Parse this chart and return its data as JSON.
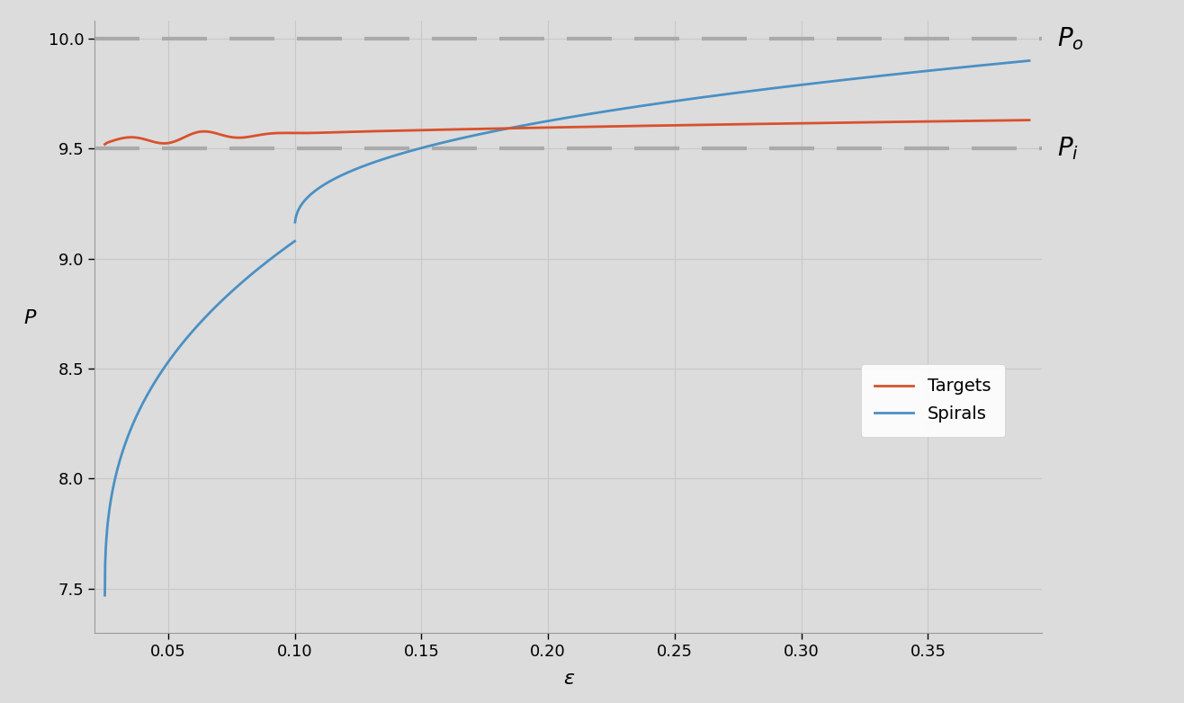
{
  "plot_background": "#dcdcdc",
  "figure_background": "#dcdcdc",
  "xlim": [
    0.021,
    0.395
  ],
  "ylim": [
    7.3,
    10.08
  ],
  "xlabel": "ε",
  "ylabel": "P",
  "xlabel_fontsize": 16,
  "ylabel_fontsize": 16,
  "yticks": [
    7.5,
    8.0,
    8.5,
    9.0,
    9.5,
    10.0
  ],
  "xticks": [
    0.05,
    0.1,
    0.15,
    0.2,
    0.25,
    0.3,
    0.35
  ],
  "hline_Po": 10.0,
  "hline_Pi": 9.5,
  "hline_color": "#aaaaaa",
  "hline_lw": 3.0,
  "hline_dash_on": 12,
  "hline_dash_off": 6,
  "Po_label": "$P_o$",
  "Pi_label": "$P_i$",
  "annotation_fontsize": 20,
  "targets_color": "#d9512c",
  "spirals_color": "#4a90c4",
  "line_lw": 2.0,
  "legend_fontsize": 14,
  "grid_color": "#c8c8c8",
  "grid_lw": 0.8,
  "tick_fontsize": 13
}
